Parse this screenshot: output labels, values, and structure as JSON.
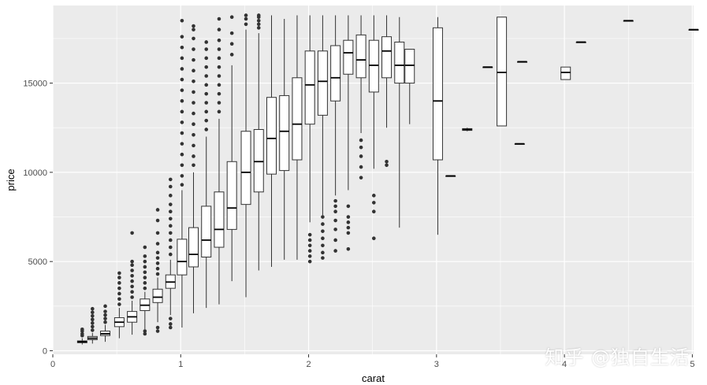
{
  "chart_data": {
    "type": "boxplot",
    "xlabel": "carat",
    "ylabel": "price",
    "xlim": [
      0,
      5.01
    ],
    "ylim": [
      -200,
      19350
    ],
    "x_ticks": [
      0,
      1,
      2,
      3,
      4,
      5
    ],
    "y_ticks": [
      0,
      5000,
      10000,
      15000
    ],
    "grid": true,
    "panel_background": "#ebebeb",
    "grid_color": "#ffffff",
    "box_fill": "#ffffff",
    "line_color": "#333333",
    "boxes": [
      {
        "x": 0.23,
        "min": 350,
        "q1": 450,
        "median": 500,
        "q3": 550,
        "max": 700,
        "outliers": [
          850,
          950,
          1100,
          1200
        ]
      },
      {
        "x": 0.31,
        "min": 400,
        "q1": 620,
        "median": 700,
        "q3": 800,
        "max": 1000,
        "outliers": [
          1150,
          1350,
          1550,
          1750,
          1950,
          2150,
          2350
        ]
      },
      {
        "x": 0.41,
        "min": 500,
        "q1": 850,
        "median": 950,
        "q3": 1100,
        "max": 1450,
        "outliers": [
          1600,
          1800,
          2000,
          2200,
          2500
        ]
      },
      {
        "x": 0.52,
        "min": 700,
        "q1": 1350,
        "median": 1600,
        "q3": 1850,
        "max": 2400,
        "outliers": [
          2600,
          2900,
          3200,
          3500,
          3800,
          4100,
          4350
        ]
      },
      {
        "x": 0.62,
        "min": 900,
        "q1": 1600,
        "median": 1900,
        "q3": 2200,
        "max": 2800,
        "outliers": [
          3000,
          3300,
          3600,
          3900,
          4200,
          4500,
          4800,
          5000,
          6600
        ]
      },
      {
        "x": 0.72,
        "min": 1200,
        "q1": 2250,
        "median": 2550,
        "q3": 2900,
        "max": 3300,
        "outliers": [
          950,
          1100,
          3500,
          3800,
          4100,
          4400,
          4700,
          5000,
          5300,
          5800
        ]
      },
      {
        "x": 0.82,
        "min": 1600,
        "q1": 2700,
        "median": 3000,
        "q3": 3450,
        "max": 4100,
        "outliers": [
          1100,
          1300,
          4300,
          4600,
          4900,
          5200,
          5500,
          6000,
          6600,
          7300,
          7900
        ]
      },
      {
        "x": 0.92,
        "min": 2000,
        "q1": 3500,
        "median": 3850,
        "q3": 4250,
        "max": 5100,
        "outliers": [
          1300,
          1500,
          1800,
          5400,
          5800,
          6200,
          6600,
          7000,
          7400,
          7800,
          8200,
          8700,
          9200,
          9600
        ]
      },
      {
        "x": 1.01,
        "min": 1300,
        "q1": 4250,
        "median": 5000,
        "q3": 6250,
        "max": 9000,
        "outliers": [
          9300,
          9800,
          10400,
          11000,
          11600,
          12200,
          12800,
          13400,
          14000,
          14600,
          15200,
          15800,
          16400,
          17000,
          17600,
          18500
        ]
      },
      {
        "x": 1.1,
        "min": 2100,
        "q1": 4700,
        "median": 5400,
        "q3": 6900,
        "max": 10000,
        "outliers": [
          10400,
          10900,
          11500,
          12100,
          12700,
          13300,
          13900,
          14500,
          15100,
          15700,
          16300,
          16900,
          17500,
          18000,
          18200
        ]
      },
      {
        "x": 1.2,
        "min": 2400,
        "q1": 5250,
        "median": 6200,
        "q3": 8100,
        "max": 12000,
        "outliers": [
          12400,
          12900,
          13400,
          13900,
          14400,
          14900,
          15400,
          15900,
          16400,
          16900,
          17300
        ]
      },
      {
        "x": 1.3,
        "min": 2600,
        "q1": 5800,
        "median": 6800,
        "q3": 8900,
        "max": 13000,
        "outliers": [
          13400,
          13900,
          14400,
          14900,
          15400,
          15900,
          16400,
          16900,
          17400,
          18000,
          18600
        ]
      },
      {
        "x": 1.4,
        "min": 3900,
        "q1": 6800,
        "median": 8000,
        "q3": 10600,
        "max": 16000,
        "outliers": [
          16600,
          17200,
          17800,
          18700
        ]
      },
      {
        "x": 1.51,
        "min": 3000,
        "q1": 8200,
        "median": 10000,
        "q3": 12300,
        "max": 18000,
        "outliers": [
          18300,
          18600,
          18800
        ]
      },
      {
        "x": 1.61,
        "min": 4500,
        "q1": 8900,
        "median": 10600,
        "q3": 12400,
        "max": 17800,
        "outliers": [
          18100,
          18300,
          18500,
          18700,
          18800
        ]
      },
      {
        "x": 1.71,
        "min": 4700,
        "q1": 9900,
        "median": 11900,
        "q3": 14200,
        "max": 18800,
        "outliers": []
      },
      {
        "x": 1.81,
        "min": 5100,
        "q1": 10100,
        "median": 12300,
        "q3": 14300,
        "max": 18600,
        "outliers": []
      },
      {
        "x": 1.91,
        "min": 5100,
        "q1": 10700,
        "median": 12700,
        "q3": 15300,
        "max": 18800,
        "outliers": []
      },
      {
        "x": 2.01,
        "min": 7200,
        "q1": 12700,
        "median": 14900,
        "q3": 16800,
        "max": 18800,
        "outliers": [
          5000,
          5300,
          5600,
          5900,
          6200,
          6500
        ]
      },
      {
        "x": 2.11,
        "min": 7600,
        "q1": 13200,
        "median": 15100,
        "q3": 16800,
        "max": 18800,
        "outliers": [
          5200,
          5500,
          5900,
          6300,
          6700,
          7100,
          7500
        ]
      },
      {
        "x": 2.21,
        "min": 8700,
        "q1": 14000,
        "median": 15300,
        "q3": 17100,
        "max": 18800,
        "outliers": [
          5600,
          6200,
          6800,
          7300,
          7800,
          8100,
          8400
        ]
      },
      {
        "x": 2.31,
        "min": 9000,
        "q1": 15500,
        "median": 16700,
        "q3": 17400,
        "max": 18800,
        "outliers": [
          5700,
          6600,
          6900,
          7200,
          7500,
          8100
        ]
      },
      {
        "x": 2.41,
        "min": 12200,
        "q1": 15300,
        "median": 16300,
        "q3": 17700,
        "max": 18800,
        "outliers": [
          9700,
          10300,
          10900,
          11400,
          11800
        ]
      },
      {
        "x": 2.51,
        "min": 10200,
        "q1": 14500,
        "median": 16000,
        "q3": 17400,
        "max": 18800,
        "outliers": [
          6300,
          7800,
          8300,
          8700
        ]
      },
      {
        "x": 2.61,
        "min": 12500,
        "q1": 15300,
        "median": 16800,
        "q3": 17600,
        "max": 18800,
        "outliers": [
          10400,
          10600
        ]
      },
      {
        "x": 2.71,
        "min": 6900,
        "q1": 15000,
        "median": 16000,
        "q3": 17300,
        "max": 18700,
        "outliers": []
      },
      {
        "x": 2.79,
        "min": 12700,
        "q1": 15000,
        "median": 16000,
        "q3": 16900,
        "max": 16900,
        "outliers": []
      },
      {
        "x": 3.01,
        "min": 6500,
        "q1": 10700,
        "median": 14000,
        "q3": 18100,
        "max": 18700,
        "outliers": []
      },
      {
        "x": 3.11,
        "min": 9800,
        "q1": 9800,
        "median": 9800,
        "q3": 9800,
        "max": 9800,
        "outliers": []
      },
      {
        "x": 3.24,
        "min": 12300,
        "q1": 12350,
        "median": 12400,
        "q3": 12450,
        "max": 12500,
        "outliers": []
      },
      {
        "x": 3.4,
        "min": 15900,
        "q1": 15900,
        "median": 15900,
        "q3": 15900,
        "max": 15900,
        "outliers": []
      },
      {
        "x": 3.51,
        "min": 12600,
        "q1": 12600,
        "median": 15600,
        "q3": 18700,
        "max": 18700,
        "outliers": []
      },
      {
        "x": 3.65,
        "min": 11600,
        "q1": 11600,
        "median": 11600,
        "q3": 11600,
        "max": 11600,
        "outliers": []
      },
      {
        "x": 3.67,
        "min": 16200,
        "q1": 16200,
        "median": 16200,
        "q3": 16200,
        "max": 16200,
        "outliers": []
      },
      {
        "x": 4.01,
        "min": 15200,
        "q1": 15200,
        "median": 15600,
        "q3": 15900,
        "max": 15900,
        "outliers": []
      },
      {
        "x": 4.13,
        "min": 17300,
        "q1": 17300,
        "median": 17300,
        "q3": 17300,
        "max": 17300,
        "outliers": []
      },
      {
        "x": 4.5,
        "min": 18500,
        "q1": 18500,
        "median": 18500,
        "q3": 18500,
        "max": 18500,
        "outliers": []
      },
      {
        "x": 5.01,
        "min": 18000,
        "q1": 18000,
        "median": 18000,
        "q3": 18000,
        "max": 18000,
        "outliers": []
      }
    ]
  },
  "watermark": "知乎 @独自生活"
}
